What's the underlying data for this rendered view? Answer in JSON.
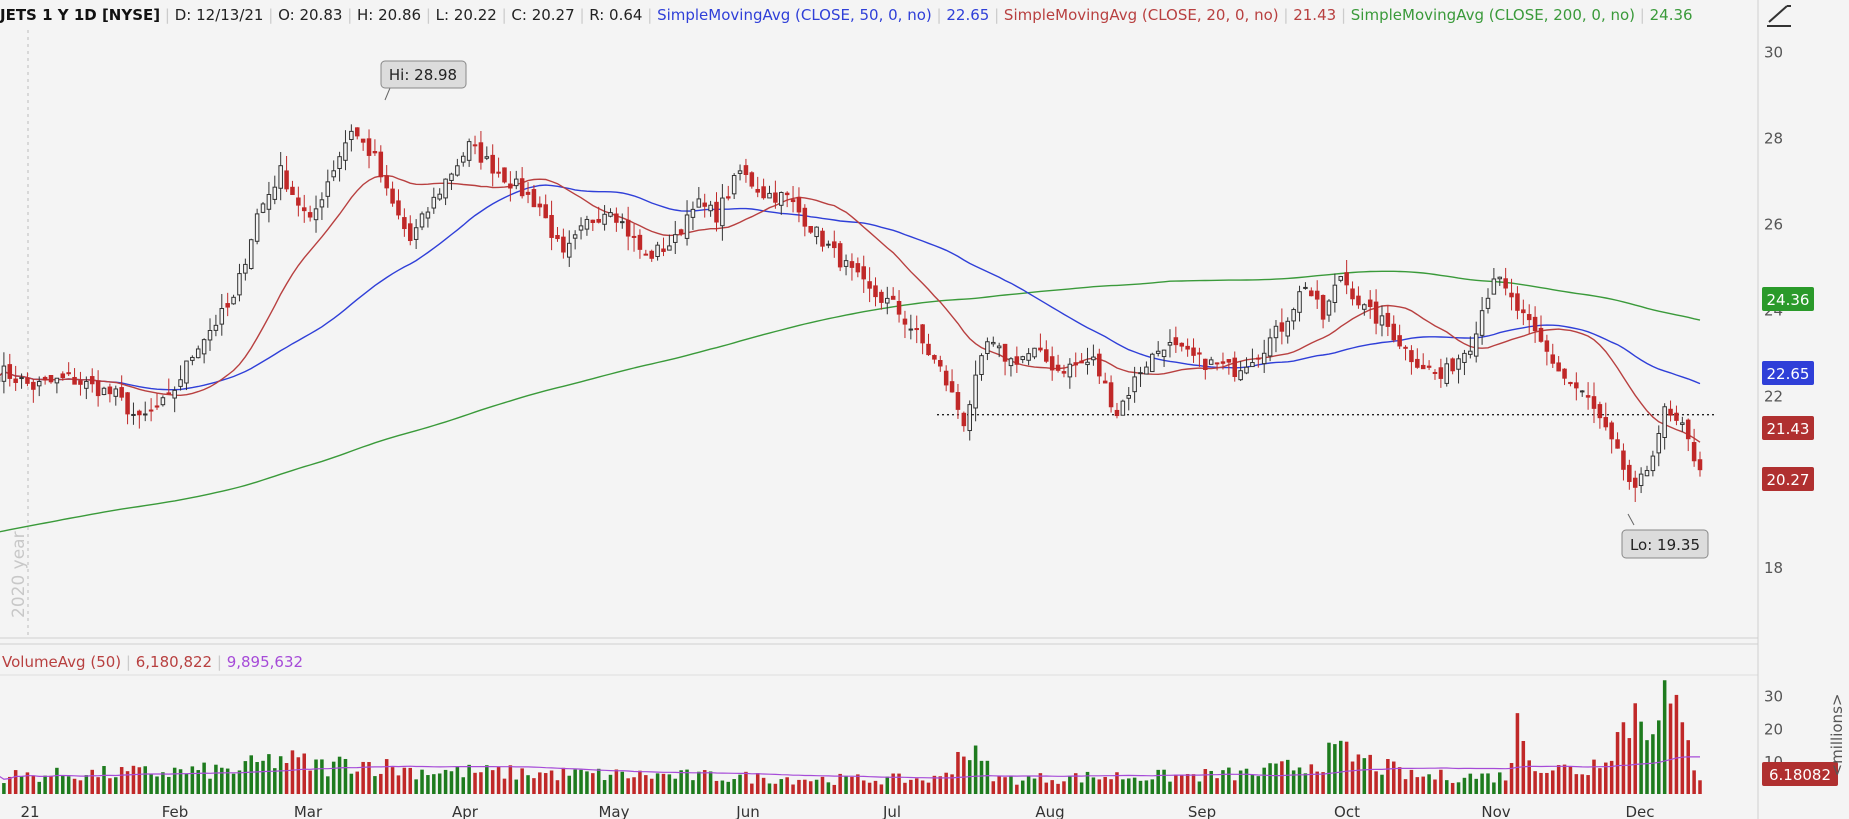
{
  "header": {
    "symbol": "JETS 1 Y 1D [NYSE]",
    "date": "D: 12/13/21",
    "open": "O: 20.83",
    "high": "H: 20.86",
    "low": "L: 20.22",
    "close": "C: 20.27",
    "range": "R: 0.64",
    "sma50_label": "SimpleMovingAvg (CLOSE, 50, 0, no)",
    "sma50_value": "22.65",
    "sma20_label": "SimpleMovingAvg (CLOSE, 20, 0, no)",
    "sma20_value": "21.43",
    "sma200_label": "SimpleMovingAvg (CLOSE, 200, 0, no)",
    "sma200_value": "24.36"
  },
  "volume_header": {
    "label": "VolumeAvg (50)",
    "value1": "6,180,822",
    "value2": "9,895,632"
  },
  "watermark": "2020 year",
  "colors": {
    "up": "#1e7b1e",
    "down": "#c02828",
    "sma50": "#2f3fd8",
    "sma20": "#b84040",
    "sma200": "#3a9a3a",
    "vol_avg": "#a64bd8"
  },
  "chart_data": {
    "type": "candlestick",
    "price_axis": {
      "ylim": [
        16.4,
        30.5
      ],
      "ticks": [
        18,
        20,
        22,
        24,
        26,
        28,
        30
      ]
    },
    "volume_axis": {
      "ylim": [
        0,
        36
      ],
      "ticks": [
        10,
        20,
        30
      ],
      "unit_label": "<millions>"
    },
    "x_labels": [
      "21",
      "Feb",
      "Mar",
      "Apr",
      "May",
      "Jun",
      "Jul",
      "Aug",
      "Sep",
      "Oct",
      "Nov",
      "Dec"
    ],
    "support_level": 21.55,
    "callouts": {
      "high": "Hi: 28.98",
      "low": "Lo: 19.35"
    },
    "last_values": {
      "sma200": "24.36",
      "sma50": "22.65",
      "sma20": "21.43",
      "close": "20.27",
      "volume": "6.18082"
    },
    "anchors": [
      [
        0,
        22.6
      ],
      [
        6,
        22.2
      ],
      [
        12,
        22.4
      ],
      [
        20,
        22.0
      ],
      [
        24,
        21.4
      ],
      [
        29,
        21.9
      ],
      [
        34,
        23.2
      ],
      [
        40,
        24.2
      ],
      [
        44,
        26.2
      ],
      [
        48,
        27.2
      ],
      [
        53,
        26.0
      ],
      [
        56,
        27.0
      ],
      [
        60,
        28.2
      ],
      [
        64,
        27.5
      ],
      [
        66,
        26.7
      ],
      [
        70,
        25.6
      ],
      [
        76,
        27.0
      ],
      [
        80,
        27.8
      ],
      [
        85,
        27.2
      ],
      [
        92,
        26.4
      ],
      [
        96,
        25.2
      ],
      [
        100,
        26.0
      ],
      [
        104,
        26.4
      ],
      [
        110,
        25.2
      ],
      [
        115,
        25.6
      ],
      [
        118,
        26.5
      ],
      [
        122,
        26.2
      ],
      [
        126,
        27.2
      ],
      [
        130,
        26.7
      ],
      [
        134,
        26.6
      ],
      [
        140,
        25.6
      ],
      [
        144,
        25.0
      ],
      [
        148,
        24.4
      ],
      [
        152,
        24.1
      ],
      [
        156,
        23.4
      ],
      [
        160,
        22.6
      ],
      [
        164,
        21.4
      ],
      [
        168,
        23.2
      ],
      [
        172,
        22.8
      ],
      [
        176,
        23.0
      ],
      [
        180,
        22.6
      ],
      [
        186,
        22.8
      ],
      [
        190,
        21.6
      ],
      [
        194,
        22.6
      ],
      [
        198,
        23.2
      ],
      [
        204,
        22.8
      ],
      [
        210,
        22.6
      ],
      [
        214,
        23.0
      ],
      [
        218,
        23.6
      ],
      [
        222,
        24.6
      ],
      [
        225,
        23.8
      ],
      [
        228,
        24.8
      ],
      [
        232,
        24.0
      ],
      [
        236,
        23.6
      ],
      [
        240,
        22.9
      ],
      [
        245,
        22.4
      ],
      [
        250,
        23.2
      ],
      [
        254,
        24.8
      ],
      [
        258,
        24.0
      ],
      [
        262,
        23.2
      ],
      [
        266,
        22.4
      ],
      [
        270,
        21.9
      ],
      [
        272,
        21.4
      ],
      [
        275,
        20.6
      ],
      [
        278,
        19.7
      ],
      [
        280,
        20.3
      ],
      [
        283,
        21.6
      ],
      [
        286,
        21.2
      ],
      [
        289,
        20.27
      ]
    ],
    "volume_anchors": [
      [
        0,
        6
      ],
      [
        20,
        7
      ],
      [
        40,
        8
      ],
      [
        48,
        12
      ],
      [
        56,
        9
      ],
      [
        60,
        11
      ],
      [
        70,
        8
      ],
      [
        90,
        7
      ],
      [
        120,
        6
      ],
      [
        140,
        5
      ],
      [
        160,
        5
      ],
      [
        164,
        16
      ],
      [
        170,
        5
      ],
      [
        190,
        6
      ],
      [
        200,
        6
      ],
      [
        214,
        7
      ],
      [
        222,
        10
      ],
      [
        228,
        14
      ],
      [
        240,
        6
      ],
      [
        256,
        6
      ],
      [
        258,
        22
      ],
      [
        262,
        9
      ],
      [
        270,
        8
      ],
      [
        275,
        20
      ],
      [
        278,
        28
      ],
      [
        280,
        24
      ],
      [
        282,
        34
      ],
      [
        284,
        30
      ],
      [
        289,
        6
      ]
    ]
  }
}
